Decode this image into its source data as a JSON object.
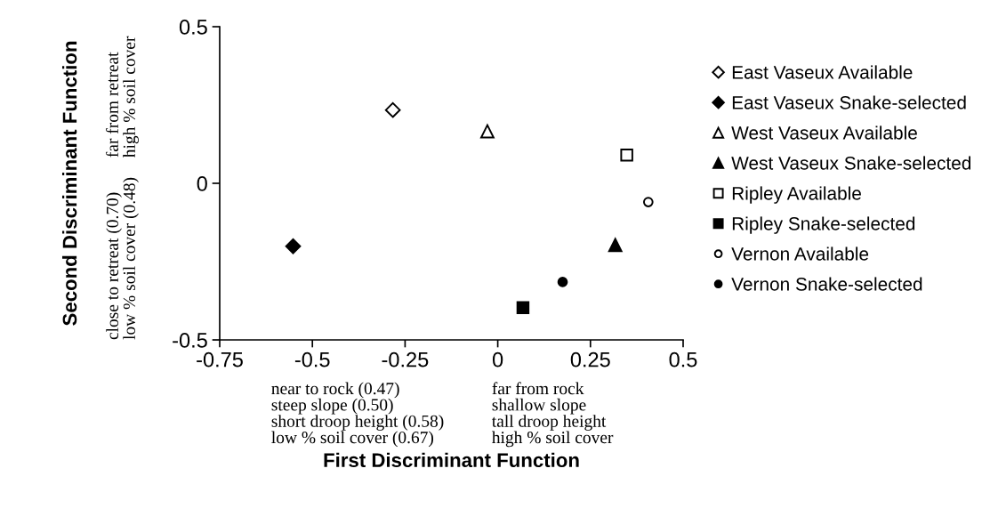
{
  "chart_data": {
    "type": "scatter",
    "xlabel": "First Discriminant Function",
    "ylabel": "Second Discriminant Function",
    "xlim": [
      -0.75,
      0.5
    ],
    "xticks": [
      -0.75,
      -0.5,
      -0.25,
      0,
      0.25,
      0.5
    ],
    "ylim": [
      -0.5,
      0.5
    ],
    "yticks": [
      -0.5,
      0,
      0.5
    ],
    "grid": false,
    "legend": "right",
    "series": [
      {
        "name": "East Vaseux Available",
        "marker": "diamond",
        "color": "#ffffff",
        "x": [
          -0.283
        ],
        "values": [
          0.234
        ]
      },
      {
        "name": "East Vaseux Snake-selected",
        "marker": "diamond",
        "color": "#000000",
        "x": [
          -0.552
        ],
        "values": [
          -0.201
        ]
      },
      {
        "name": "West Vaseux Available",
        "marker": "triangle",
        "color": "#ffffff",
        "x": [
          -0.028
        ],
        "values": [
          0.166
        ]
      },
      {
        "name": "West Vaseux Snake-selected",
        "marker": "triangle",
        "color": "#000000",
        "x": [
          0.317
        ],
        "values": [
          -0.197
        ]
      },
      {
        "name": "Ripley Available",
        "marker": "square",
        "color": "#ffffff",
        "x": [
          0.348
        ],
        "values": [
          0.09
        ]
      },
      {
        "name": "Ripley Snake-selected",
        "marker": "square",
        "color": "#000000",
        "x": [
          0.068
        ],
        "values": [
          -0.397
        ]
      },
      {
        "name": "Vernon Available",
        "marker": "circle",
        "color": "#ffffff",
        "x": [
          0.406
        ],
        "values": [
          -0.06
        ]
      },
      {
        "name": "Vernon Snake-selected",
        "marker": "circle",
        "color": "#000000",
        "x": [
          0.175
        ],
        "values": [
          -0.315
        ]
      }
    ],
    "annotations": [
      "close to retreat (0.70)\nlow % soil cover (0.48)",
      "far from retreat\nhigh % soil cover",
      "near to rock (0.47)\nsteep slope (0.50)\nshort droop height (0.58)\nlow % soil cover (0.67)",
      "far from rock\nshallow slope\ntall droop height\nhigh % soil cover"
    ]
  }
}
